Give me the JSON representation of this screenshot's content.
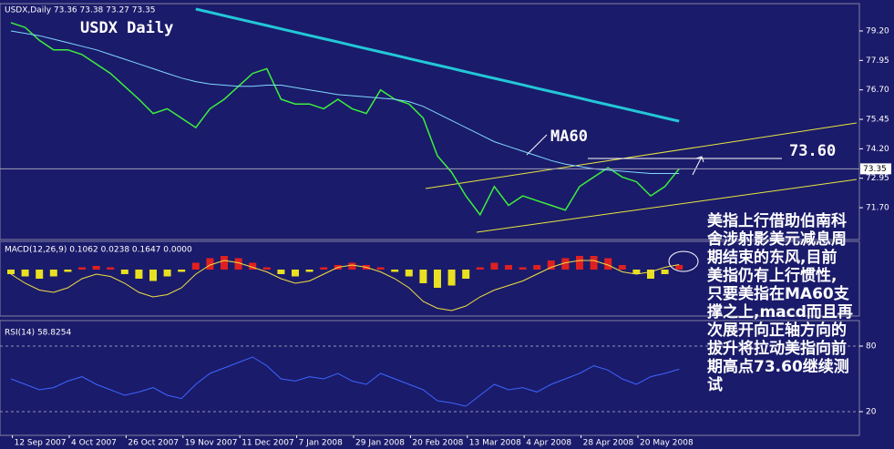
{
  "chart_data": [
    {
      "type": "line",
      "title": "USDX Daily",
      "header_label": "USDX,Daily 73.36 73.38 73.27 73.35",
      "annotations": [
        "MA60",
        "73.60"
      ],
      "note_lines": [
        "美指上行借助伯南科",
        "舍涉射影美元减息周",
        "期结束的东风,目前",
        "美指仍有上行惯性,",
        "只要美指在MA60支",
        "撑之上,macd而且再",
        "次展开向正轴方向的",
        "拔升将拉动美指向前",
        "期高点73.60继续测",
        "试"
      ],
      "categories": [
        null,
        "12 Sep 2007",
        null,
        null,
        null,
        "4 Oct 2007",
        null,
        null,
        null,
        "26 Oct 2007",
        null,
        null,
        null,
        "19 Nov 2007",
        null,
        null,
        null,
        "11 Dec 2007",
        null,
        null,
        null,
        "7 Jan 2008",
        null,
        null,
        null,
        "29 Jan 2008",
        null,
        null,
        null,
        "20 Feb 2008",
        null,
        null,
        null,
        "13 Mar 2008",
        null,
        null,
        null,
        "4 Apr 2008",
        null,
        null,
        null,
        "28 Apr 2008",
        null,
        null,
        null,
        "20 May 2008",
        null,
        null
      ],
      "series": [
        {
          "color": "#3cf03c",
          "values": [
            79.55,
            79.35,
            78.8,
            78.4,
            78.4,
            78.2,
            77.8,
            77.4,
            76.85,
            76.3,
            75.7,
            75.9,
            75.5,
            75.1,
            75.9,
            76.3,
            76.85,
            77.4,
            77.6,
            76.3,
            76.1,
            76.1,
            75.9,
            76.3,
            75.9,
            75.7,
            76.7,
            76.3,
            76.1,
            75.5,
            73.9,
            73.2,
            72.2,
            71.4,
            72.6,
            71.8,
            72.2,
            72.0,
            71.8,
            71.6,
            72.6,
            73.0,
            73.4,
            73.0,
            72.8,
            72.2,
            72.6,
            73.35
          ]
        },
        {
          "color": "#7fd8ff",
          "values": [
            79.2,
            79.1,
            79.0,
            78.85,
            78.7,
            78.55,
            78.4,
            78.2,
            78.0,
            77.8,
            77.6,
            77.4,
            77.2,
            77.05,
            76.95,
            76.9,
            76.85,
            76.85,
            76.9,
            76.9,
            76.8,
            76.7,
            76.6,
            76.5,
            76.45,
            76.4,
            76.35,
            76.3,
            76.2,
            76.0,
            75.7,
            75.4,
            75.1,
            74.8,
            74.5,
            74.3,
            74.1,
            73.9,
            73.7,
            73.55,
            73.45,
            73.35,
            73.3,
            73.25,
            73.2,
            73.15,
            73.15,
            73.15
          ]
        },
        {
          "color": "#22c8d8",
          "values": [
            null,
            null,
            null,
            null,
            null,
            null,
            null,
            null,
            null,
            null,
            null,
            null,
            null,
            80.13,
            79.99,
            79.85,
            79.71,
            79.57,
            79.43,
            79.29,
            79.15,
            79.01,
            78.87,
            78.73,
            78.59,
            78.45,
            78.31,
            78.17,
            78.03,
            77.89,
            77.75,
            77.61,
            77.47,
            77.33,
            77.19,
            77.05,
            76.91,
            76.77,
            76.63,
            76.49,
            76.35,
            76.21,
            76.07,
            75.93,
            75.79,
            75.65,
            75.51,
            75.37
          ]
        }
      ],
      "last_price": 73.35,
      "ylim": [
        70.35,
        80.32
      ],
      "yticks": [
        {
          "value": 79.2,
          "label": "79.20"
        },
        {
          "value": 77.95,
          "label": "77.95"
        },
        {
          "value": 76.7,
          "label": "76.70"
        },
        {
          "value": 75.45,
          "label": "75.45"
        },
        {
          "value": 74.2,
          "label": "74.20"
        },
        {
          "value": 72.95,
          "label": "72.95"
        },
        {
          "value": 71.7,
          "label": "71.70"
        }
      ]
    },
    {
      "type": "bar",
      "title": "MACD(12,26,9) 0.1062 0.0238 0.1647 0.0000",
      "values": [
        -0.1,
        -0.15,
        -0.2,
        -0.15,
        -0.05,
        0.05,
        0.08,
        0.05,
        -0.1,
        -0.2,
        -0.25,
        -0.15,
        -0.05,
        0.15,
        0.25,
        0.3,
        0.25,
        0.15,
        0.05,
        -0.1,
        -0.15,
        -0.05,
        0.05,
        0.1,
        0.15,
        0.1,
        0.05,
        -0.05,
        -0.15,
        -0.3,
        -0.4,
        -0.35,
        -0.2,
        0.05,
        0.15,
        0.1,
        0.05,
        0.1,
        0.2,
        0.25,
        0.3,
        0.3,
        0.25,
        0.1,
        -0.1,
        -0.2,
        -0.1,
        0.1
      ],
      "colors": {
        "up": "#e02020",
        "down": "#e8e020"
      },
      "series": [
        {
          "color": "#f0e040",
          "values": [
            -0.1,
            -0.3,
            -0.45,
            -0.5,
            -0.4,
            -0.2,
            -0.1,
            -0.15,
            -0.3,
            -0.5,
            -0.6,
            -0.55,
            -0.4,
            -0.1,
            0.1,
            0.2,
            0.15,
            0.05,
            -0.05,
            -0.2,
            -0.3,
            -0.25,
            -0.1,
            0.05,
            0.1,
            0.05,
            -0.05,
            -0.2,
            -0.4,
            -0.7,
            -0.85,
            -0.9,
            -0.8,
            -0.6,
            -0.45,
            -0.35,
            -0.25,
            -0.1,
            0.05,
            0.15,
            0.2,
            0.2,
            0.1,
            -0.05,
            -0.1,
            -0.05,
            0.05,
            0.11
          ]
        }
      ],
      "ylim": [
        -1.0,
        0.6
      ]
    },
    {
      "type": "line",
      "title": "RSI(14) 58.8254",
      "series": [
        {
          "color": "#3a66ff",
          "values": [
            50,
            45,
            40,
            42,
            48,
            52,
            45,
            40,
            35,
            38,
            42,
            35,
            32,
            45,
            55,
            60,
            65,
            70,
            62,
            50,
            48,
            52,
            50,
            55,
            48,
            45,
            55,
            50,
            45,
            40,
            30,
            28,
            25,
            35,
            45,
            40,
            42,
            38,
            45,
            50,
            55,
            62,
            58,
            50,
            45,
            52,
            55,
            58.83
          ]
        }
      ],
      "ylim": [
        0,
        100
      ],
      "yticks": [
        20,
        80
      ]
    }
  ]
}
